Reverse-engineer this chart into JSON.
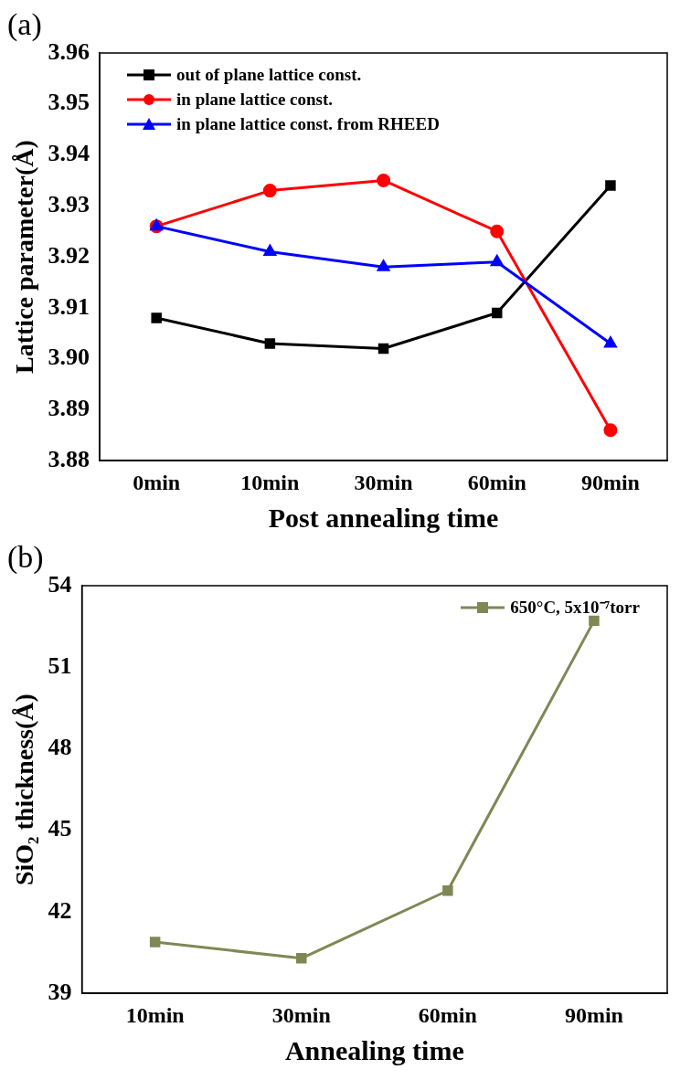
{
  "chart_data": [
    {
      "type": "line",
      "annotations": [
        "(a)"
      ],
      "xlabel": "Post annealing time",
      "ylabel": "Lattice parameter(Å)",
      "categories": [
        "0min",
        "10min",
        "30min",
        "60min",
        "90min"
      ],
      "ylim": [
        3.88,
        3.96
      ],
      "yticks": [
        3.88,
        3.89,
        {
          "value": 3.9,
          "label": "3.90"
        },
        3.91,
        3.92,
        3.93,
        3.94,
        3.95,
        3.96
      ],
      "grid": false,
      "legend": "top left",
      "line_style": "solid",
      "series": [
        {
          "name": "out of plane lattice const.",
          "color": "#000000",
          "marker": "square",
          "values": [
            3.908,
            3.903,
            3.902,
            3.909,
            3.934
          ]
        },
        {
          "name": "in plane lattice const.",
          "color": "#ff0000",
          "marker": "circle",
          "values": [
            3.926,
            3.933,
            3.935,
            3.925,
            3.886
          ]
        },
        {
          "name": "in plane lattice const. from RHEED",
          "color": "#0000ff",
          "marker": "triangle",
          "values": [
            3.926,
            3.921,
            3.918,
            3.919,
            3.903
          ]
        }
      ]
    },
    {
      "type": "line",
      "annotations": [
        "(b)"
      ],
      "xlabel": "Annealing time",
      "ylabel": "SiO₂ thickness(Å)",
      "categories": [
        "10min",
        "30min",
        "60min",
        "90min"
      ],
      "ylim": [
        39,
        54
      ],
      "yticks": [
        39,
        42,
        45,
        48,
        51,
        54
      ],
      "grid": false,
      "legend": "top right",
      "line_style": "solid",
      "marker": "square",
      "series": [
        {
          "name": "650°C, 5x10⁻⁷torr",
          "color": "#7f8855",
          "values": [
            40.89,
            40.29,
            42.78,
            52.71
          ]
        }
      ]
    }
  ]
}
